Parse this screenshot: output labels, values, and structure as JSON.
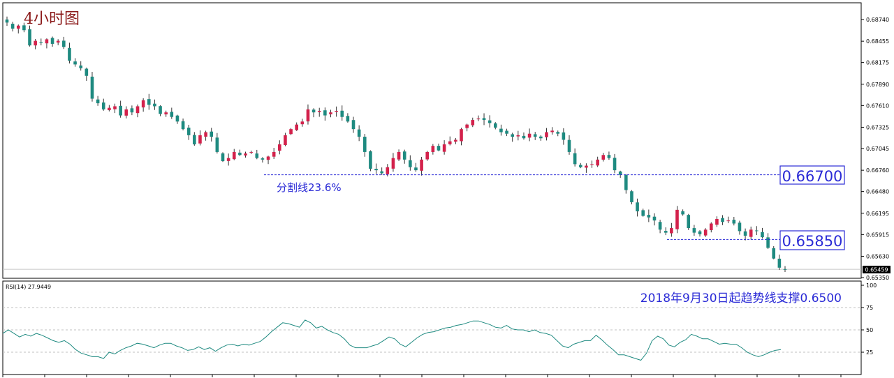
{
  "chart_data": [
    {
      "type": "candlestick",
      "title": "4小时图",
      "ylim": [
        0.6535,
        0.6874
      ],
      "y_ticks": [
        "0.68740",
        "0.68455",
        "0.68175",
        "0.67890",
        "0.67610",
        "0.67325",
        "0.67045",
        "0.66760",
        "0.66480",
        "0.66195",
        "0.65915",
        "0.65630",
        "0.65350"
      ],
      "current_price": "0.65459",
      "up_color": "#d3214b",
      "down_color": "#1e8a80",
      "annotations": {
        "fib_label": "分割线23.6%",
        "level_1": "0.66700",
        "level_2": "0.65850"
      },
      "levels": [
        0.667,
        0.6585
      ],
      "close_approx": [
        0.687,
        0.6862,
        0.6866,
        0.686,
        0.684,
        0.6846,
        0.6844,
        0.6848,
        0.6842,
        0.6846,
        0.6838,
        0.682,
        0.6815,
        0.681,
        0.68,
        0.677,
        0.6764,
        0.6756,
        0.6758,
        0.676,
        0.6748,
        0.6756,
        0.6752,
        0.676,
        0.6768,
        0.6762,
        0.676,
        0.675,
        0.6752,
        0.6746,
        0.674,
        0.673,
        0.6722,
        0.671,
        0.6722,
        0.6726,
        0.672,
        0.67,
        0.6688,
        0.6692,
        0.67,
        0.6696,
        0.6698,
        0.67,
        0.6692,
        0.669,
        0.6694,
        0.67,
        0.671,
        0.6722,
        0.673,
        0.6736,
        0.674,
        0.6756,
        0.6752,
        0.6754,
        0.6748,
        0.6752,
        0.6754,
        0.6746,
        0.674,
        0.673,
        0.672,
        0.67,
        0.6678,
        0.6676,
        0.6672,
        0.668,
        0.6692,
        0.67,
        0.669,
        0.668,
        0.6676,
        0.669,
        0.67,
        0.6708,
        0.6702,
        0.671,
        0.6714,
        0.6716,
        0.673,
        0.6736,
        0.6742,
        0.6744,
        0.6742,
        0.6738,
        0.6732,
        0.6726,
        0.6724,
        0.672,
        0.6722,
        0.6718,
        0.6724,
        0.672,
        0.6718,
        0.6726,
        0.6728,
        0.6724,
        0.6716,
        0.67,
        0.6684,
        0.668,
        0.6682,
        0.6684,
        0.669,
        0.6696,
        0.6692,
        0.6676,
        0.667,
        0.665,
        0.6634,
        0.6622,
        0.6616,
        0.6614,
        0.661,
        0.6598,
        0.6594,
        0.66,
        0.6624,
        0.6618,
        0.66,
        0.6594,
        0.6592,
        0.6598,
        0.6606,
        0.6612,
        0.6608,
        0.661,
        0.6606,
        0.6596,
        0.659,
        0.6598,
        0.6596,
        0.6588,
        0.6574,
        0.656,
        0.6548,
        0.6546
      ]
    },
    {
      "type": "line",
      "indicator_label": "RSI(14) 27.9449",
      "ylim": [
        0,
        100
      ],
      "y_ticks": [
        100,
        75,
        50,
        25
      ],
      "annotation": "2018年9月30日起趋势线支撑0.6500",
      "values": [
        46,
        50,
        46,
        42,
        45,
        43,
        46,
        44,
        41,
        38,
        36,
        38,
        34,
        28,
        24,
        22,
        20,
        20,
        18,
        25,
        23,
        27,
        30,
        32,
        35,
        34,
        32,
        30,
        33,
        35,
        35,
        32,
        30,
        27,
        28,
        31,
        28,
        30,
        26,
        30,
        33,
        34,
        32,
        34,
        33,
        35,
        37,
        42,
        48,
        53,
        58,
        57,
        55,
        53,
        61,
        58,
        52,
        54,
        50,
        47,
        45,
        40,
        33,
        30,
        30,
        30,
        32,
        34,
        38,
        42,
        40,
        34,
        31,
        36,
        41,
        45,
        47,
        48,
        50,
        52,
        53,
        55,
        56,
        58,
        60,
        60,
        58,
        56,
        53,
        52,
        55,
        51,
        50,
        50,
        48,
        50,
        47,
        46,
        44,
        38,
        32,
        30,
        34,
        36,
        38,
        38,
        44,
        39,
        33,
        28,
        22,
        22,
        20,
        18,
        16,
        24,
        38,
        43,
        40,
        33,
        31,
        36,
        39,
        45,
        43,
        40,
        40,
        37,
        34,
        35,
        34,
        34,
        30,
        25,
        22,
        20,
        22,
        25,
        27,
        28
      ]
    }
  ]
}
